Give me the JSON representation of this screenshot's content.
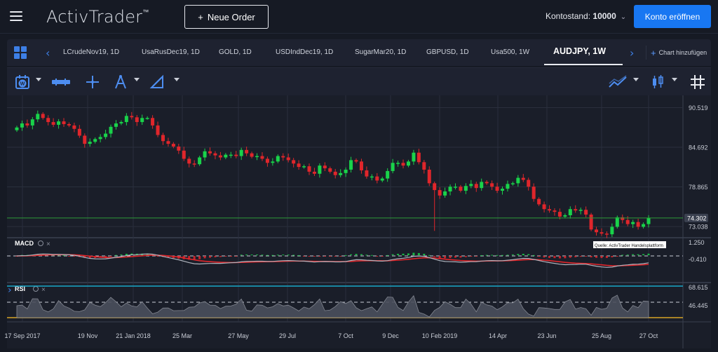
{
  "header": {
    "logo_text": "ActivTrader",
    "logo_tm": "™",
    "new_order_label": "Neue Order",
    "balance_label": "Kontostand:",
    "balance_value": "10000",
    "open_account_label": "Konto eröffnen"
  },
  "tabs": [
    {
      "label": "LCrudeNov19, 1D",
      "active": false
    },
    {
      "label": "UsaRusDec19, 1D",
      "active": false
    },
    {
      "label": "GOLD, 1D",
      "active": false
    },
    {
      "label": "USDIndDec19, 1D",
      "active": false
    },
    {
      "label": "SugarMar20, 1D",
      "active": false
    },
    {
      "label": "GBPUSD, 1D",
      "active": false
    },
    {
      "label": "Usa500, 1W",
      "active": false
    },
    {
      "label": "AUDJPY, 1W",
      "active": true
    }
  ],
  "add_chart_label": "Chart hinzufügen",
  "toolbar_icons": [
    "chart-layout-icon",
    "bar-type-icon",
    "crosshair-icon",
    "drawing-tools-icon",
    "shapes-icon",
    "indicators-icon",
    "candle-style-icon",
    "grid-icon"
  ],
  "colors": {
    "accent": "#3d7fe6",
    "bull": "#19d34a",
    "bear": "#e0262b",
    "current_price_line": "#2e9b3a",
    "rsi_upper": "#19a8c9",
    "rsi_lower": "#d8a425"
  },
  "chart": {
    "price_axis_labels": [
      "90.519",
      "84.692",
      "78.865",
      "73.038"
    ],
    "current_price": "74.302",
    "macd_label": "MACD",
    "macd_axis_labels": [
      "1.250",
      "-0.410"
    ],
    "rsi_label": "RSI",
    "rsi_axis_labels": [
      "68.615",
      "46.445"
    ],
    "source_note": "Quelle: ActivTrader Handelsplattform",
    "date_labels": [
      "17 Sep 2017",
      "19 Nov",
      "21 Jan 2018",
      "25 Mar",
      "27 May",
      "29 Jul",
      "7 Oct",
      "9 Dec",
      "10 Feb 2019",
      "14 Apr",
      "23 Jun",
      "25 Aug",
      "27 Oct"
    ]
  },
  "chart_data": {
    "type": "candlestick",
    "symbol": "AUDJPY",
    "timeframe": "1W",
    "ylim": [
      71.5,
      91.5
    ],
    "closes": [
      87.6,
      88.2,
      87.9,
      88.8,
      89.6,
      89.0,
      88.4,
      88.0,
      88.5,
      88.1,
      87.9,
      87.4,
      86.4,
      85.2,
      85.5,
      85.9,
      86.2,
      86.7,
      87.7,
      88.2,
      88.4,
      89.3,
      89.1,
      88.4,
      89.0,
      89.0,
      87.9,
      86.5,
      85.6,
      85.2,
      84.8,
      84.2,
      83.0,
      82.3,
      82.2,
      83.2,
      84.1,
      83.8,
      83.5,
      83.2,
      83.6,
      83.6,
      83.4,
      84.3,
      83.8,
      83.3,
      83.4,
      83.0,
      82.4,
      82.6,
      83.4,
      83.2,
      82.8,
      82.3,
      81.8,
      81.9,
      81.1,
      80.8,
      82.0,
      81.6,
      81.1,
      80.6,
      80.9,
      81.4,
      82.8,
      82.6,
      81.3,
      80.4,
      80.4,
      79.8,
      80.1,
      81.2,
      82.4,
      82.4,
      82.0,
      82.6,
      83.9,
      82.5,
      81.4,
      79.4,
      78.4,
      77.6,
      78.2,
      78.9,
      78.9,
      78.3,
      79.0,
      79.3,
      78.7,
      79.6,
      79.4,
      78.9,
      78.3,
      78.6,
      79.3,
      79.4,
      80.2,
      79.9,
      78.9,
      77.1,
      76.3,
      75.6,
      75.4,
      75.2,
      74.5,
      74.7,
      75.6,
      75.4,
      75.5,
      74.8,
      72.6,
      72.2,
      72.0,
      71.9,
      73.0,
      74.4,
      74.0,
      73.4,
      73.7,
      73.0,
      73.4,
      74.3
    ]
  }
}
